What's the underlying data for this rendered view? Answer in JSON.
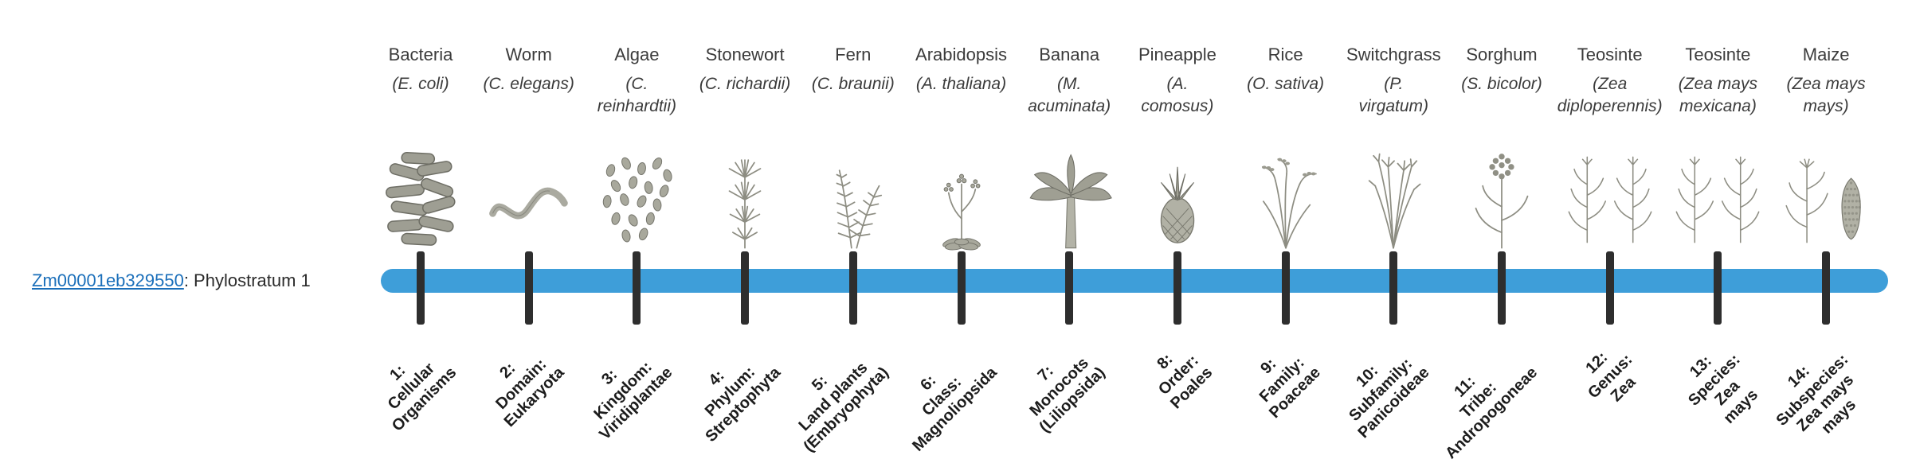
{
  "gene": {
    "id": "Zm00001eb329550",
    "suffix": ": Phylostratum 1"
  },
  "colors": {
    "bar": "#3E9ED9",
    "tick": "#2E2E2E",
    "link": "#1B6FBA"
  },
  "strata": [
    {
      "common": "Bacteria",
      "sci": "(E. coli)",
      "icon": "bacteria-icon",
      "label": "1:\nCellular\nOrganisms"
    },
    {
      "common": "Worm",
      "sci": "(C. elegans)",
      "icon": "worm-icon",
      "label": "2:\nDomain:\nEukaryota"
    },
    {
      "common": "Algae",
      "sci": "(C.\nreinhardtii)",
      "icon": "algae-icon",
      "label": "3:\nKingdom:\nViridiplantae"
    },
    {
      "common": "Stonewort",
      "sci": "(C. richardii)",
      "icon": "stonewort-icon",
      "label": "4:\nPhylum:\nStreptophyta"
    },
    {
      "common": "Fern",
      "sci": "(C. braunii)",
      "icon": "fern-icon",
      "label": "5:\nLand plants\n(Embryophyta)"
    },
    {
      "common": "Arabidopsis",
      "sci": "(A. thaliana)",
      "icon": "arabidopsis-icon",
      "label": "6:\nClass:\nMagnoliopsida"
    },
    {
      "common": "Banana",
      "sci": "(M.\nacuminata)",
      "icon": "banana-icon",
      "label": "7:\nMonocots\n(Liliopsida)"
    },
    {
      "common": "Pineapple",
      "sci": "(A.\ncomosus)",
      "icon": "pineapple-icon",
      "label": "8:\nOrder:\nPoales"
    },
    {
      "common": "Rice",
      "sci": "(O. sativa)",
      "icon": "rice-icon",
      "label": "9:\nFamily:\nPoaceae"
    },
    {
      "common": "Switchgrass",
      "sci": "(P.\nvirgatum)",
      "icon": "switchgrass-icon",
      "label": "10:\nSubfamily:\nPanicoideae"
    },
    {
      "common": "Sorghum",
      "sci": "(S. bicolor)",
      "icon": "sorghum-icon",
      "label": "11:\nTribe:\nAndropogoneae"
    },
    {
      "common": "Teosinte",
      "sci": "(Zea\ndiploperennis)",
      "icon": "teosinte-diploperennis-icon",
      "label": "12:\nGenus:\nZea"
    },
    {
      "common": "Teosinte",
      "sci": "(Zea mays\nmexicana)",
      "icon": "teosinte-mexicana-icon",
      "label": "13:\nSpecies:\nZea\nmays"
    },
    {
      "common": "Maize",
      "sci": "(Zea mays\nmays)",
      "icon": "maize-icon",
      "label": "14:\nSubspecies:\nZea mays\nmays"
    }
  ]
}
